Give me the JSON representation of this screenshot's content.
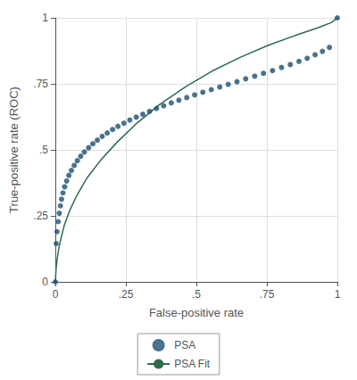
{
  "chart_data": {
    "type": "scatter",
    "xlabel": "False-positive rate",
    "ylabel": "True-positive rate (ROC)",
    "xlim": [
      0,
      1
    ],
    "ylim": [
      0,
      1
    ],
    "xticks": [
      0,
      {
        "value": 0.25,
        "label": ".25"
      },
      {
        "value": 0.5,
        "label": ".5"
      },
      {
        "value": 0.75,
        "label": ".75"
      },
      1
    ],
    "yticks": [
      0,
      {
        "value": 0.25,
        "label": ".25"
      },
      {
        "value": 0.5,
        "label": ".5"
      },
      {
        "value": 0.75,
        "label": ".75"
      },
      1
    ],
    "grid": true,
    "legend": "bottom",
    "series": [
      {
        "name": "PSA",
        "type": "scatter",
        "marker": "circle",
        "color": "#1b4f72",
        "x": [
          0.0,
          0.003,
          0.006,
          0.01,
          0.014,
          0.018,
          0.022,
          0.027,
          0.033,
          0.04,
          0.048,
          0.057,
          0.067,
          0.078,
          0.09,
          0.103,
          0.118,
          0.133,
          0.149,
          0.166,
          0.184,
          0.203,
          0.222,
          0.243,
          0.264,
          0.287,
          0.31,
          0.334,
          0.359,
          0.384,
          0.411,
          0.438,
          0.466,
          0.494,
          0.523,
          0.553,
          0.583,
          0.613,
          0.644,
          0.675,
          0.707,
          0.738,
          0.77,
          0.802,
          0.833,
          0.864,
          0.893,
          0.921,
          0.947,
          0.972,
          1.0
        ],
        "values": [
          0.0,
          0.145,
          0.19,
          0.228,
          0.26,
          0.288,
          0.313,
          0.337,
          0.36,
          0.382,
          0.403,
          0.422,
          0.441,
          0.459,
          0.476,
          0.492,
          0.508,
          0.523,
          0.537,
          0.551,
          0.564,
          0.577,
          0.589,
          0.601,
          0.613,
          0.624,
          0.635,
          0.646,
          0.657,
          0.667,
          0.678,
          0.688,
          0.698,
          0.708,
          0.718,
          0.728,
          0.738,
          0.748,
          0.758,
          0.769,
          0.779,
          0.79,
          0.8,
          0.812,
          0.823,
          0.835,
          0.847,
          0.86,
          0.873,
          0.888,
          1.0
        ]
      },
      {
        "name": "PSA Fit",
        "type": "line",
        "color": "#2d6b4e",
        "x": [
          0.0,
          0.003,
          0.007,
          0.012,
          0.02,
          0.032,
          0.05,
          0.075,
          0.11,
          0.16,
          0.22,
          0.29,
          0.37,
          0.46,
          0.555,
          0.655,
          0.755,
          0.85,
          0.93,
          0.978,
          1.0
        ],
        "values": [
          0.0,
          0.055,
          0.09,
          0.125,
          0.165,
          0.215,
          0.268,
          0.325,
          0.39,
          0.46,
          0.53,
          0.602,
          0.672,
          0.738,
          0.798,
          0.85,
          0.896,
          0.933,
          0.962,
          0.982,
          1.0
        ]
      }
    ]
  }
}
